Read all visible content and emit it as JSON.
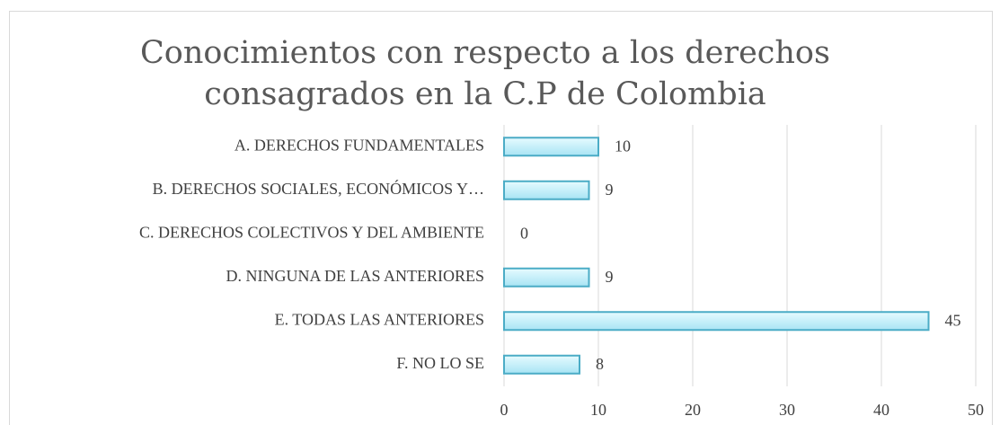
{
  "chart_data": {
    "type": "bar",
    "orientation": "horizontal",
    "title": "Conocimientos con respecto a los derechos consagrados en la C.P de Colombia",
    "categories": [
      "A. DERECHOS FUNDAMENTALES",
      "B. DERECHOS SOCIALES, ECONÓMICOS Y…",
      "C. DERECHOS COLECTIVOS Y DEL AMBIENTE",
      "D. NINGUNA DE LAS ANTERIORES",
      "E. TODAS LAS ANTERIORES",
      "F. NO LO SE"
    ],
    "values": [
      10,
      9,
      0,
      9,
      45,
      8
    ],
    "color": "#bfeefa",
    "xlim": [
      0,
      50
    ],
    "xticks": [
      0,
      10,
      20,
      30,
      40,
      50
    ],
    "grid": true
  }
}
